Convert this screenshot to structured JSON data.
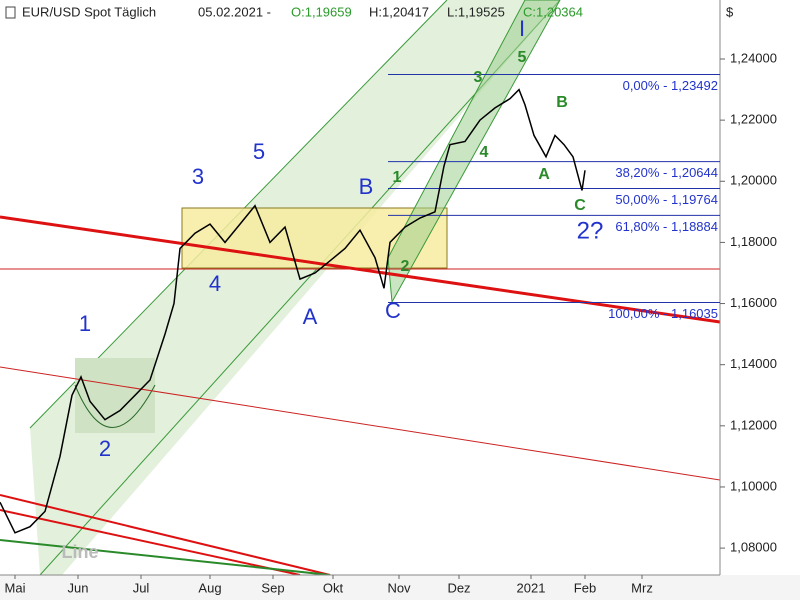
{
  "chart_data": {
    "type": "line",
    "header": {
      "symbol": "EUR/USD Spot Täglich",
      "date": "05.02.2021 -",
      "open": "O:1,19659",
      "high": "H:1,20417",
      "low": "L:1,19525",
      "close": "C:1,20364"
    },
    "currency": "$",
    "x": [
      0,
      5,
      10,
      15,
      20,
      24,
      27,
      30,
      35,
      40,
      45,
      50,
      55,
      58,
      60,
      65,
      70,
      75,
      80,
      85,
      90,
      95,
      100,
      105,
      110,
      115,
      120,
      125,
      128,
      130,
      135,
      140,
      145,
      148,
      150,
      155,
      160,
      165,
      170,
      173,
      175,
      178,
      182,
      185,
      188,
      191,
      194,
      195
    ],
    "series": [
      {
        "name": "EUR/USD",
        "color": "#000000",
        "values": [
          1.095,
          1.085,
          1.087,
          1.092,
          1.11,
          1.13,
          1.136,
          1.128,
          1.122,
          1.125,
          1.13,
          1.135,
          1.15,
          1.16,
          1.178,
          1.183,
          1.186,
          1.18,
          1.186,
          1.192,
          1.18,
          1.185,
          1.168,
          1.17,
          1.174,
          1.178,
          1.184,
          1.175,
          1.165,
          1.18,
          1.185,
          1.188,
          1.19,
          1.205,
          1.212,
          1.213,
          1.22,
          1.224,
          1.227,
          1.23,
          1.225,
          1.215,
          1.208,
          1.215,
          1.212,
          1.208,
          1.197,
          1.2036
        ]
      }
    ],
    "xlim": [
      0,
      240
    ],
    "xticks": [
      {
        "value": 5,
        "label": "Mai"
      },
      {
        "value": 26,
        "label": "Jun"
      },
      {
        "value": 47,
        "label": "Jul"
      },
      {
        "value": 70,
        "label": "Aug"
      },
      {
        "value": 91,
        "label": "Sep"
      },
      {
        "value": 111,
        "label": "Okt"
      },
      {
        "value": 133,
        "label": "Nov"
      },
      {
        "value": 153,
        "label": "Dez"
      },
      {
        "value": 177,
        "label": "2021"
      },
      {
        "value": 195,
        "label": "Feb"
      },
      {
        "value": 214,
        "label": "Mrz"
      }
    ],
    "ylim": [
      1.0712,
      1.2593
    ],
    "yticks": [
      {
        "value": 1.08,
        "label": "1,08000"
      },
      {
        "value": 1.1,
        "label": "1,10000"
      },
      {
        "value": 1.12,
        "label": "1,12000"
      },
      {
        "value": 1.14,
        "label": "1,14000"
      },
      {
        "value": 1.16,
        "label": "1,16000"
      },
      {
        "value": 1.18,
        "label": "1,18000"
      },
      {
        "value": 1.2,
        "label": "1,20000"
      },
      {
        "value": 1.22,
        "label": "1,22000"
      },
      {
        "value": 1.24,
        "label": "1,24000"
      }
    ],
    "fib_levels": [
      {
        "value": 1.23492,
        "label": "0,00% - 1,23492"
      },
      {
        "value": 1.20644,
        "label": "38,20% - 1,20644"
      },
      {
        "value": 1.19764,
        "label": "50,00% - 1,19764"
      },
      {
        "value": 1.18884,
        "label": "61,80% - 1,18884"
      },
      {
        "value": 1.16035,
        "label": "100,00% - 1,16035"
      }
    ],
    "annotations": [
      "1",
      "2",
      "3",
      "4",
      "5",
      "A",
      "B",
      "C",
      "I",
      "1",
      "2",
      "3",
      "4",
      "5",
      "A",
      "B",
      "C",
      "2?",
      "Line"
    ]
  }
}
